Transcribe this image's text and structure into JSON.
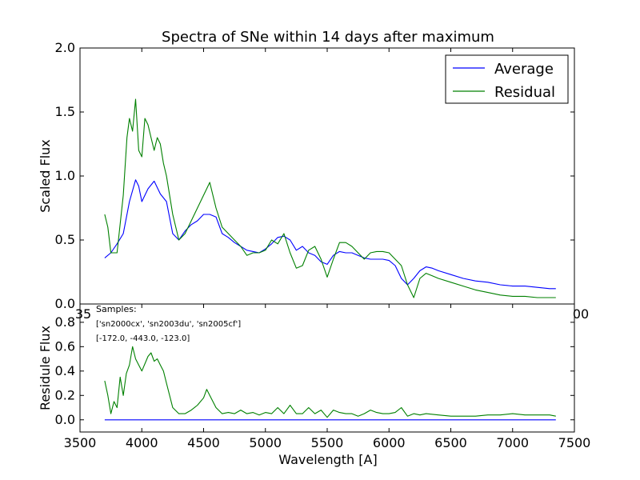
{
  "chart_data": [
    {
      "type": "line",
      "title": "Spectra of SNe within 14 days after maximum",
      "xlabel": "",
      "ylabel": "Scaled Flux",
      "xlim": [
        3500,
        7500
      ],
      "ylim": [
        0.0,
        2.0
      ],
      "yticks": [
        "0.0",
        "0.5",
        "1.0",
        "1.5",
        "2.0"
      ],
      "xticks_visible": [
        "35",
        "00"
      ],
      "legend_position": "top-right",
      "legend": [
        "Average",
        "Residual"
      ],
      "series": [
        {
          "name": "Average",
          "color": "#0000ff",
          "x": [
            3700,
            3750,
            3800,
            3850,
            3900,
            3950,
            3975,
            4000,
            4050,
            4100,
            4150,
            4200,
            4250,
            4300,
            4350,
            4400,
            4450,
            4500,
            4550,
            4600,
            4650,
            4700,
            4750,
            4800,
            4850,
            4900,
            4950,
            5000,
            5050,
            5100,
            5150,
            5200,
            5250,
            5300,
            5350,
            5400,
            5450,
            5500,
            5550,
            5600,
            5650,
            5700,
            5750,
            5800,
            5850,
            5900,
            5950,
            6000,
            6050,
            6100,
            6150,
            6200,
            6250,
            6300,
            6350,
            6400,
            6500,
            6600,
            6700,
            6800,
            6900,
            7000,
            7100,
            7200,
            7300,
            7350
          ],
          "y": [
            0.36,
            0.4,
            0.47,
            0.55,
            0.8,
            0.97,
            0.92,
            0.8,
            0.9,
            0.96,
            0.86,
            0.8,
            0.55,
            0.5,
            0.57,
            0.62,
            0.65,
            0.7,
            0.7,
            0.68,
            0.55,
            0.52,
            0.48,
            0.45,
            0.42,
            0.41,
            0.4,
            0.43,
            0.47,
            0.52,
            0.53,
            0.5,
            0.42,
            0.45,
            0.4,
            0.38,
            0.33,
            0.31,
            0.38,
            0.41,
            0.4,
            0.4,
            0.38,
            0.36,
            0.35,
            0.35,
            0.35,
            0.34,
            0.3,
            0.2,
            0.15,
            0.2,
            0.26,
            0.29,
            0.28,
            0.26,
            0.23,
            0.2,
            0.18,
            0.17,
            0.15,
            0.14,
            0.14,
            0.13,
            0.12,
            0.12
          ]
        },
        {
          "name": "Residual",
          "color": "#008000",
          "x": [
            3700,
            3725,
            3750,
            3800,
            3850,
            3880,
            3900,
            3925,
            3950,
            3975,
            4000,
            4025,
            4050,
            4075,
            4100,
            4125,
            4150,
            4175,
            4200,
            4250,
            4300,
            4350,
            4400,
            4450,
            4500,
            4550,
            4600,
            4650,
            4700,
            4750,
            4800,
            4850,
            4900,
            4950,
            5000,
            5050,
            5100,
            5150,
            5200,
            5250,
            5300,
            5350,
            5400,
            5450,
            5500,
            5550,
            5600,
            5650,
            5700,
            5750,
            5800,
            5850,
            5900,
            5950,
            6000,
            6050,
            6100,
            6150,
            6200,
            6250,
            6300,
            6350,
            6400,
            6500,
            6600,
            6700,
            6800,
            6900,
            7000,
            7100,
            7200,
            7300,
            7350
          ],
          "y": [
            0.7,
            0.6,
            0.4,
            0.4,
            0.85,
            1.3,
            1.45,
            1.35,
            1.6,
            1.2,
            1.15,
            1.45,
            1.4,
            1.3,
            1.2,
            1.3,
            1.25,
            1.1,
            1.0,
            0.7,
            0.5,
            0.55,
            0.65,
            0.75,
            0.85,
            0.95,
            0.75,
            0.6,
            0.55,
            0.5,
            0.45,
            0.38,
            0.4,
            0.4,
            0.42,
            0.5,
            0.47,
            0.55,
            0.4,
            0.28,
            0.3,
            0.42,
            0.45,
            0.35,
            0.21,
            0.35,
            0.48,
            0.48,
            0.45,
            0.4,
            0.35,
            0.4,
            0.41,
            0.41,
            0.4,
            0.35,
            0.3,
            0.15,
            0.05,
            0.2,
            0.24,
            0.22,
            0.2,
            0.17,
            0.14,
            0.11,
            0.09,
            0.07,
            0.06,
            0.06,
            0.05,
            0.05,
            0.05
          ]
        }
      ]
    },
    {
      "type": "line",
      "title": "",
      "xlabel": "Wavelength [A]",
      "ylabel": "Residule Flux",
      "xlim": [
        3500,
        7500
      ],
      "ylim": [
        -0.1,
        0.95
      ],
      "xticks": [
        "3500",
        "4000",
        "4500",
        "5000",
        "5500",
        "6000",
        "6500",
        "7000",
        "7500"
      ],
      "yticks": [
        "0.0",
        "0.2",
        "0.4",
        "0.6",
        "0.8"
      ],
      "annotations": [
        "Samples:",
        "['sn2000cx', 'sn2003du', 'sn2005cf']",
        "[-172.0, -443.0, -123.0]"
      ],
      "series": [
        {
          "color": "#0000ff",
          "x": [
            3700,
            7350
          ],
          "y": [
            0.0,
            0.0
          ]
        },
        {
          "color": "#008000",
          "x": [
            3700,
            3725,
            3750,
            3775,
            3800,
            3825,
            3850,
            3875,
            3900,
            3925,
            3950,
            3975,
            4000,
            4050,
            4075,
            4100,
            4125,
            4150,
            4175,
            4200,
            4225,
            4250,
            4300,
            4350,
            4400,
            4450,
            4500,
            4525,
            4550,
            4600,
            4650,
            4700,
            4750,
            4800,
            4850,
            4900,
            4950,
            5000,
            5050,
            5100,
            5150,
            5200,
            5250,
            5300,
            5350,
            5400,
            5450,
            5500,
            5550,
            5600,
            5650,
            5700,
            5750,
            5800,
            5850,
            5900,
            5950,
            6000,
            6050,
            6100,
            6150,
            6200,
            6250,
            6300,
            6400,
            6500,
            6600,
            6700,
            6800,
            6900,
            7000,
            7100,
            7200,
            7300,
            7350
          ],
          "y": [
            0.32,
            0.2,
            0.05,
            0.15,
            0.1,
            0.35,
            0.2,
            0.38,
            0.45,
            0.6,
            0.5,
            0.45,
            0.4,
            0.52,
            0.55,
            0.48,
            0.5,
            0.45,
            0.4,
            0.3,
            0.2,
            0.1,
            0.05,
            0.05,
            0.08,
            0.12,
            0.18,
            0.25,
            0.2,
            0.1,
            0.05,
            0.06,
            0.05,
            0.08,
            0.05,
            0.06,
            0.04,
            0.06,
            0.05,
            0.1,
            0.05,
            0.12,
            0.05,
            0.05,
            0.1,
            0.05,
            0.08,
            0.02,
            0.08,
            0.06,
            0.05,
            0.05,
            0.03,
            0.05,
            0.08,
            0.06,
            0.05,
            0.05,
            0.06,
            0.1,
            0.03,
            0.05,
            0.04,
            0.05,
            0.04,
            0.03,
            0.03,
            0.03,
            0.04,
            0.04,
            0.05,
            0.04,
            0.04,
            0.04,
            0.03
          ]
        }
      ]
    }
  ]
}
